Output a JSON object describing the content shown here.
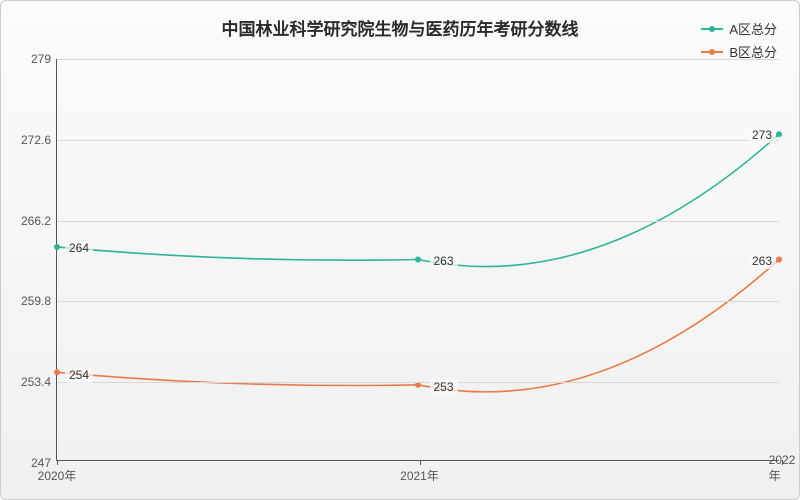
{
  "chart": {
    "type": "line",
    "title": "中国林业科学研究院生物与医药历年考研分数线",
    "title_fontsize": 17,
    "background_gradient": [
      "#fbfbfb",
      "#f0f0f0"
    ],
    "border_color": "#cccccc",
    "grid_color": "#d8d8d8",
    "axis_color": "#555555",
    "text_color": "#333333",
    "x_categories": [
      "2020年",
      "2021年",
      "2022年"
    ],
    "y_min": 247,
    "y_max": 279,
    "y_ticks": [
      247,
      253.4,
      259.8,
      266.2,
      272.6,
      279
    ],
    "label_fontsize": 12,
    "series": [
      {
        "name": "A区总分",
        "color": "#2fb39a",
        "line_width": 1.6,
        "marker_radius": 3,
        "values": [
          264,
          263,
          273
        ],
        "smooth": true
      },
      {
        "name": "B区总分",
        "color": "#e87b4a",
        "line_width": 1.6,
        "marker_radius": 3,
        "values": [
          254,
          253,
          263
        ],
        "smooth": true
      }
    ]
  }
}
